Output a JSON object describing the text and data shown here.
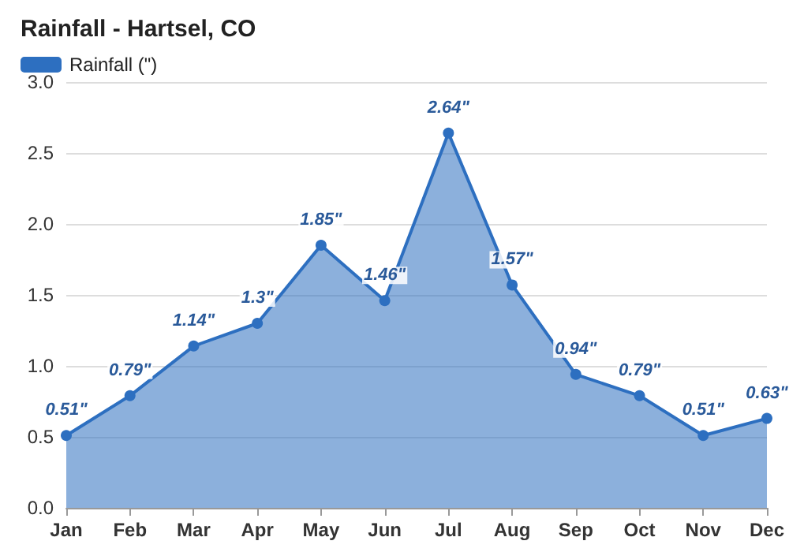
{
  "chart_data": {
    "type": "area",
    "title": "Rainfall - Hartsel, CO",
    "categories": [
      "Jan",
      "Feb",
      "Mar",
      "Apr",
      "May",
      "Jun",
      "Jul",
      "Aug",
      "Sep",
      "Oct",
      "Nov",
      "Dec"
    ],
    "series": [
      {
        "name": "Rainfall (\")",
        "color": "#2d6fc0",
        "values": [
          0.51,
          0.79,
          1.14,
          1.3,
          1.85,
          1.46,
          2.64,
          1.57,
          0.94,
          0.79,
          0.51,
          0.63
        ],
        "value_labels": [
          "0.51\"",
          "0.79\"",
          "1.14\"",
          "1.3\"",
          "1.85\"",
          "1.46\"",
          "2.64\"",
          "1.57\"",
          "0.94\"",
          "0.79\"",
          "0.51\"",
          "0.63\""
        ]
      }
    ],
    "ylim": [
      0,
      3
    ],
    "yticks": [
      {
        "value": 0,
        "label": "0.0"
      },
      {
        "value": 0.5,
        "label": "0.5"
      },
      {
        "value": 1,
        "label": "1.0"
      },
      {
        "value": 1.5,
        "label": "1.5"
      },
      {
        "value": 2,
        "label": "2.0"
      },
      {
        "value": 2.5,
        "label": "2.5"
      },
      {
        "value": 3,
        "label": "3.0"
      }
    ],
    "grid": "y",
    "legend": "top left",
    "marker": "circle"
  }
}
